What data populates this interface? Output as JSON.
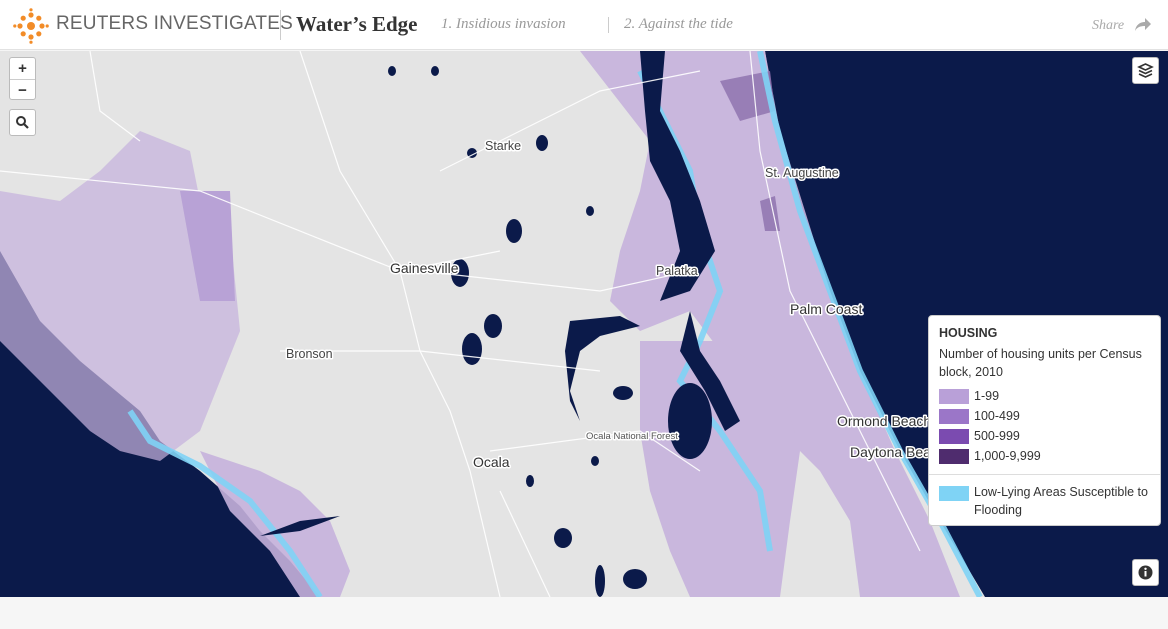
{
  "header": {
    "brand": "REUTERS INVESTIGATES",
    "title": "Water’s Edge",
    "nav": [
      "1. Insidious invasion",
      "2. Against the tide"
    ],
    "share": "Share"
  },
  "map": {
    "zoom_in": "+",
    "zoom_out": "−",
    "places": [
      "Starke",
      "St. Augustine",
      "Gainesville",
      "Palatka",
      "Palm Coast",
      "Bronson",
      "Ormond Beach",
      "Ocala National Forest",
      "Ocala",
      "Daytona Beach"
    ]
  },
  "legend": {
    "title": "HOUSING",
    "subtitle": "Number of housing units per Census block, 2010",
    "items": [
      {
        "label": "1-99",
        "color": "#b9a0d8"
      },
      {
        "label": "100-499",
        "color": "#9b76c8"
      },
      {
        "label": "500-999",
        "color": "#7b4bb0"
      },
      {
        "label": "1,000-9,999",
        "color": "#4f2c6e"
      }
    ],
    "flood": {
      "label": "Low-Lying Areas Susceptible to Flooding",
      "color": "#7fd3f5"
    }
  }
}
